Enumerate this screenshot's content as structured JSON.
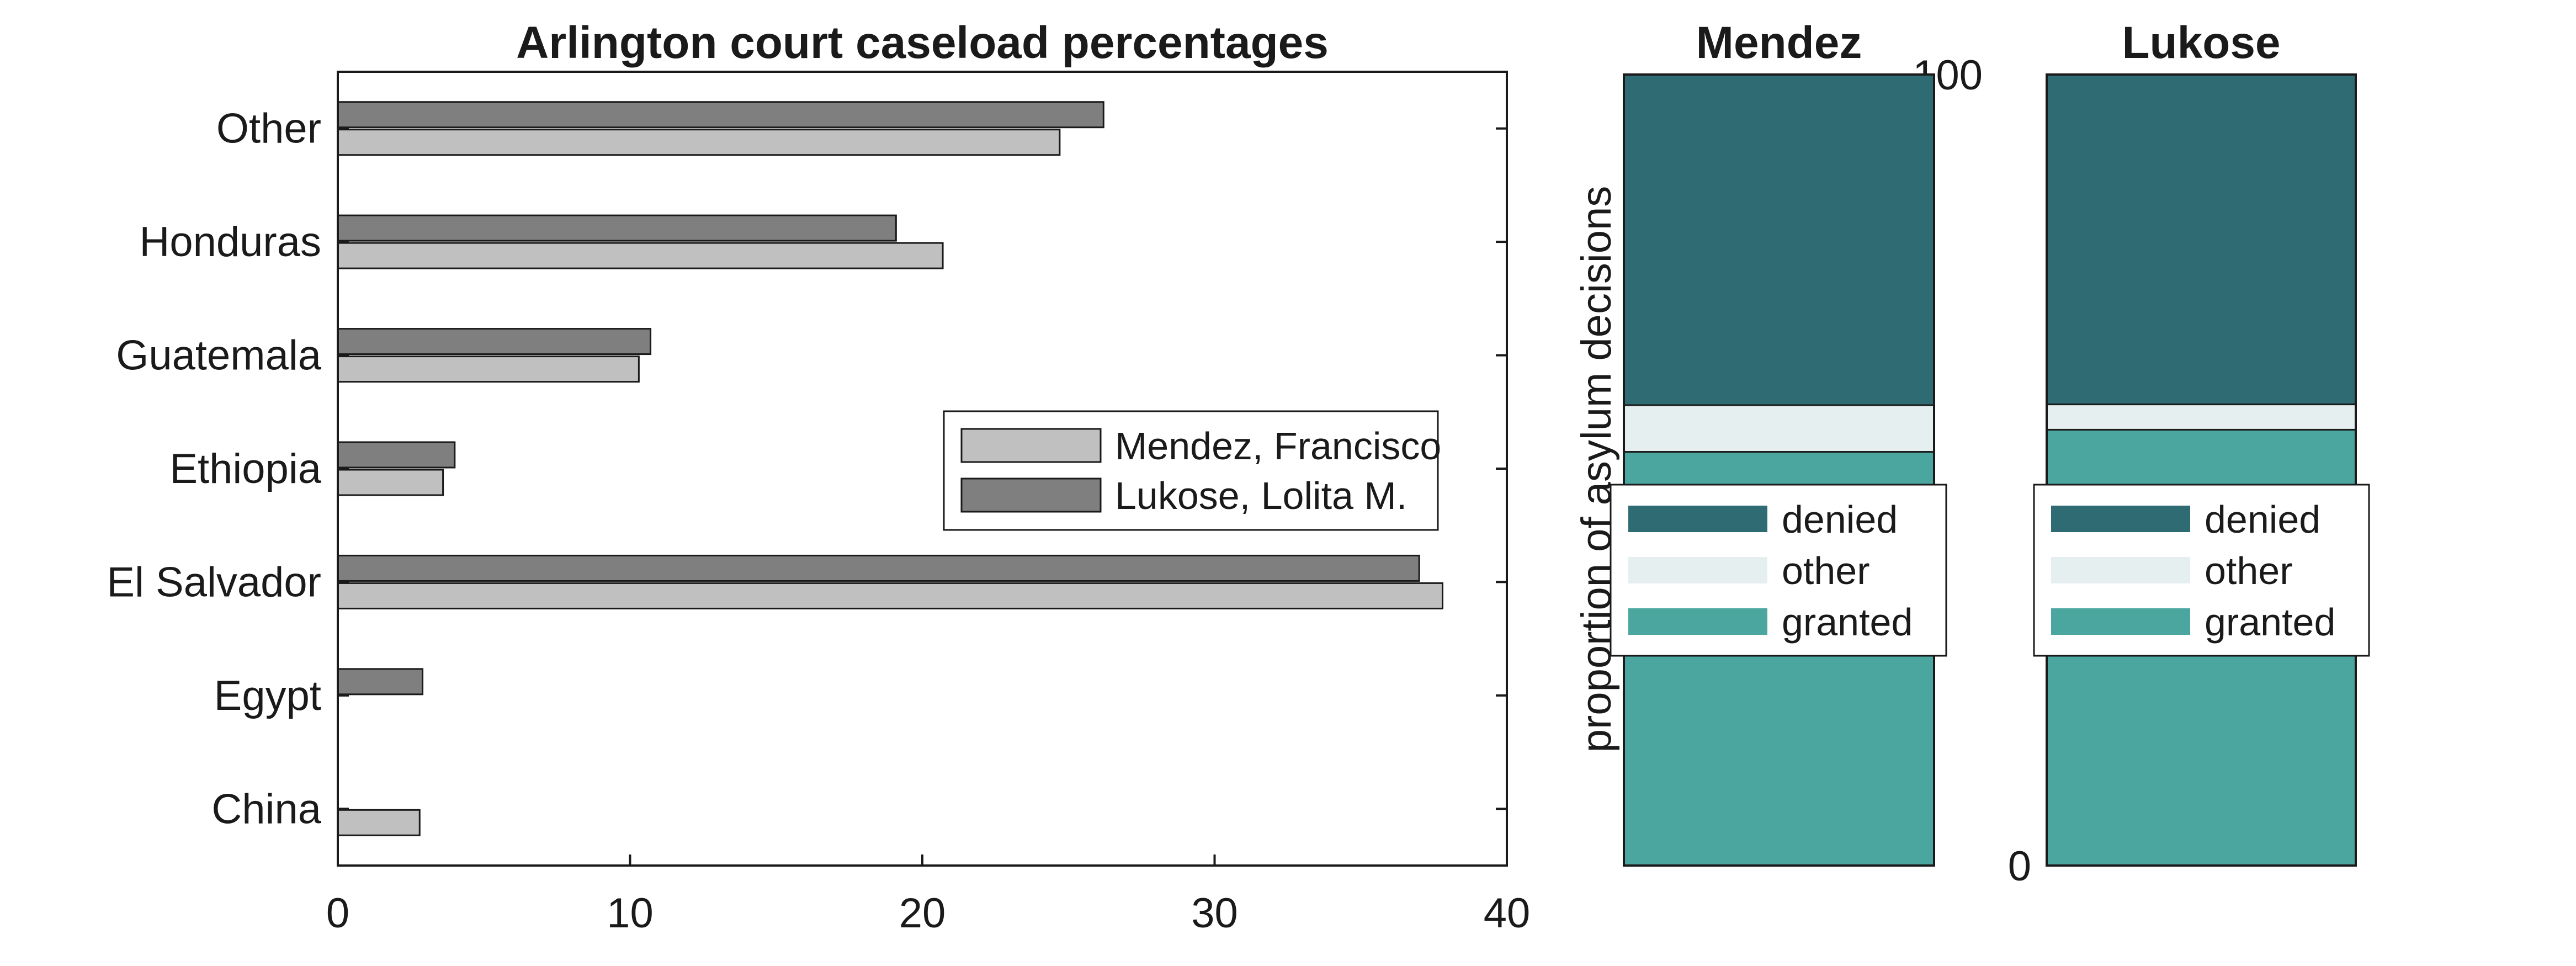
{
  "chart_data": [
    {
      "type": "bar",
      "orientation": "horizontal",
      "title": "Arlington court caseload percentages",
      "categories": [
        "China",
        "Egypt",
        "El Salvador",
        "Ethiopia",
        "Guatemala",
        "Honduras",
        "Other"
      ],
      "series": [
        {
          "name": "Mendez, Francisco",
          "values": [
            2.8,
            0,
            37.8,
            3.6,
            10.3,
            20.7,
            24.7
          ],
          "color": "#c0c0c0"
        },
        {
          "name": "Lukose, Lolita M.",
          "values": [
            0,
            2.9,
            37.0,
            4.0,
            10.7,
            19.1,
            26.2
          ],
          "color": "#7f7f7f"
        }
      ],
      "xlim": [
        0,
        40
      ],
      "xticks": [
        "0",
        "10",
        "20",
        "30",
        "40"
      ],
      "legend_position": "right",
      "grid": false
    },
    {
      "type": "bar",
      "stacked": true,
      "ylabel": "proportion of asylum decisions",
      "ylim": [
        0,
        100
      ],
      "yticks": [
        "0",
        "100"
      ],
      "stack_order_bottom_to_top": [
        "granted",
        "other",
        "denied"
      ],
      "legend_entries": [
        "denied",
        "other",
        "granted"
      ],
      "colors": {
        "denied": "#2e6b72",
        "other": "#e6eff0",
        "granted": "#4aa69e"
      },
      "panels": [
        {
          "title": "Mendez",
          "granted": 52.3,
          "other": 5.9,
          "denied": 41.8
        },
        {
          "title": "Lukose",
          "granted": 55.1,
          "other": 3.2,
          "denied": 41.7
        }
      ]
    }
  ]
}
